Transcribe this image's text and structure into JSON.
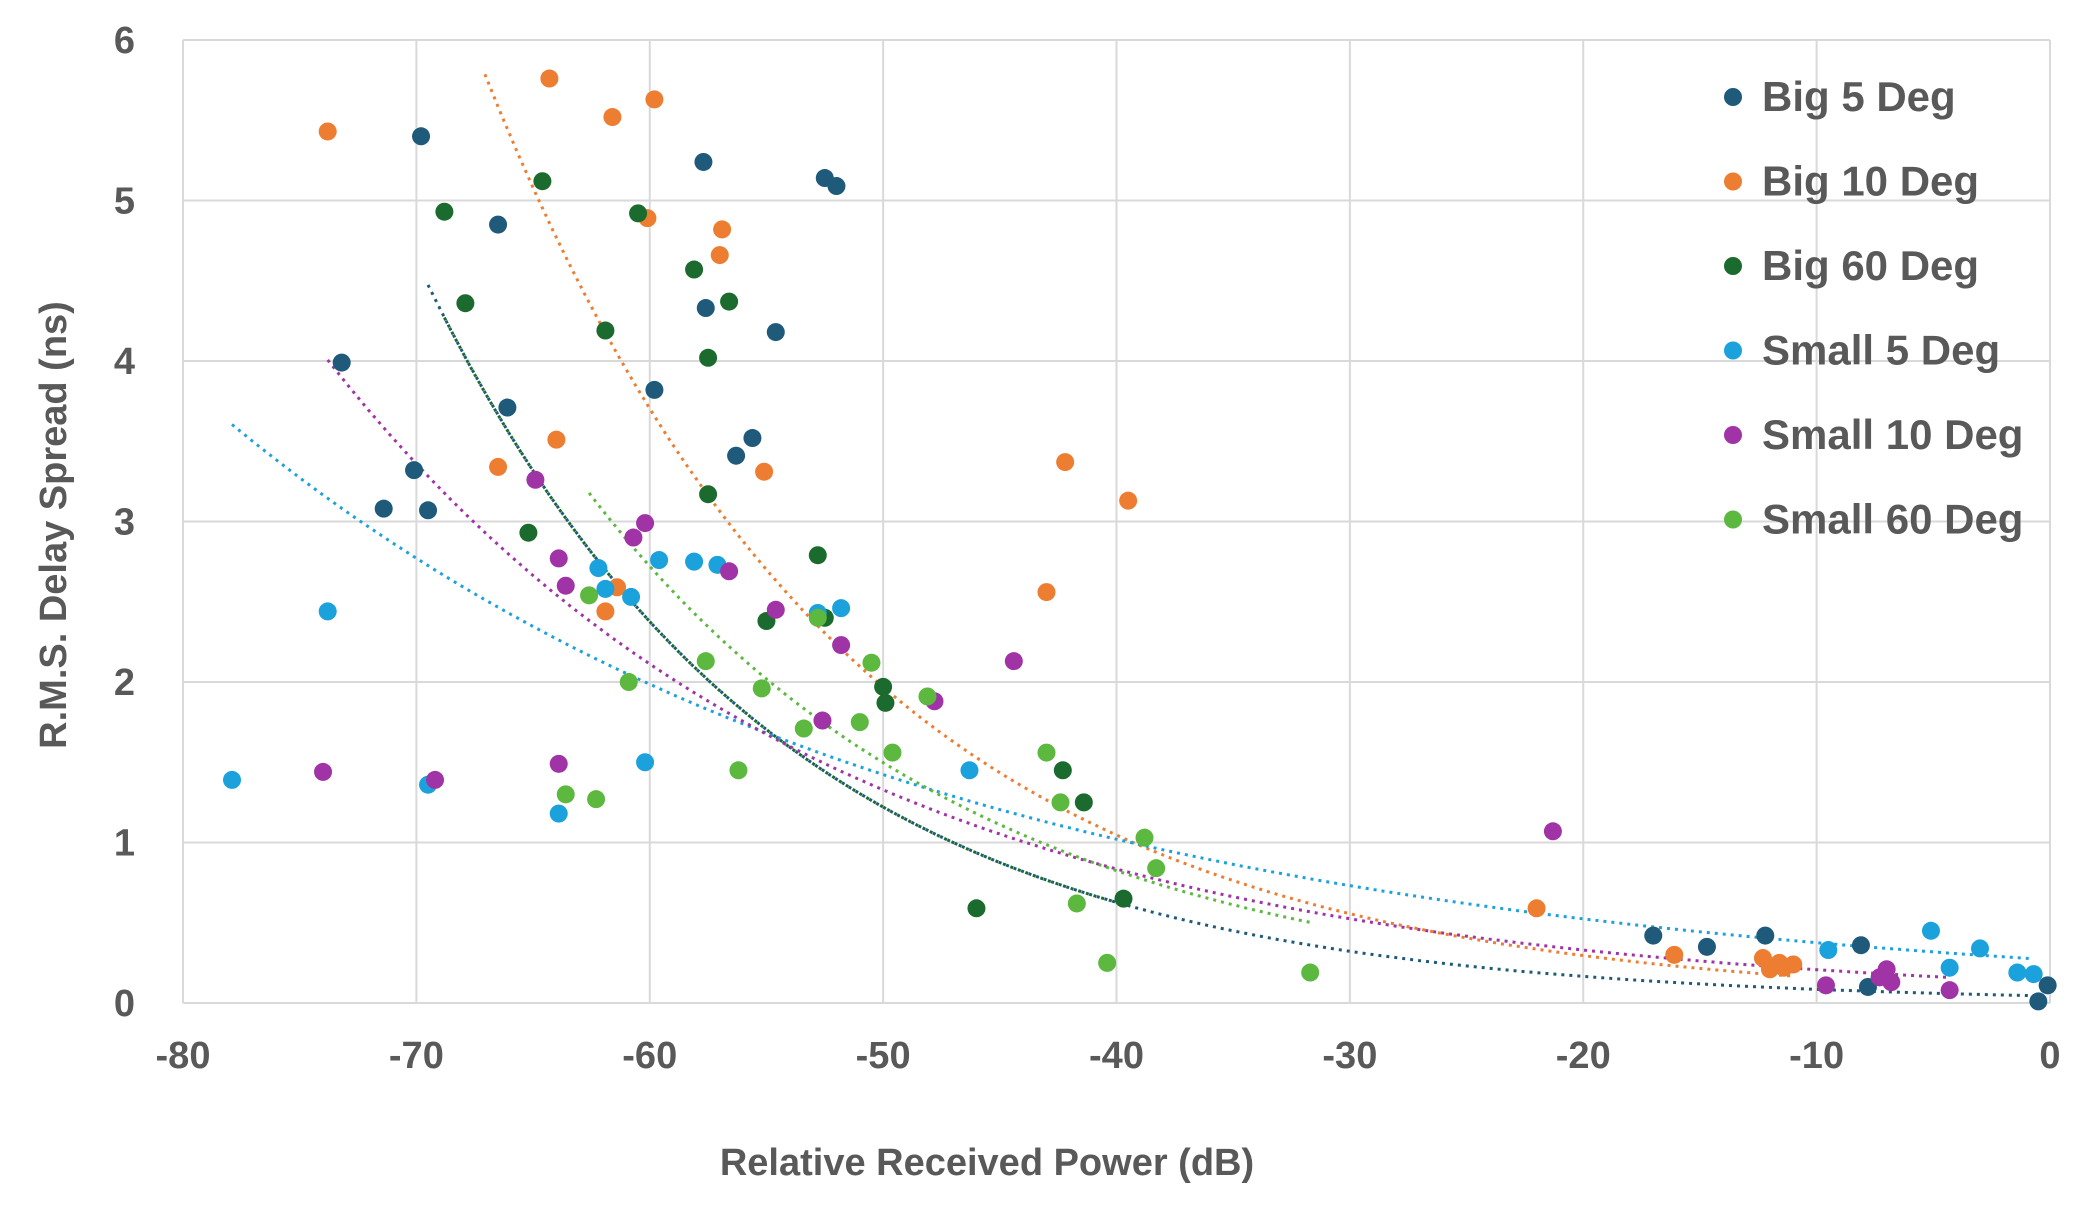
{
  "chart_data": {
    "type": "scatter",
    "title": "",
    "xlabel": "Relative Received Power (dB)",
    "ylabel": "R.M.S. Delay Spread (ns)",
    "xlim": [
      -80,
      0
    ],
    "ylim": [
      0,
      6
    ],
    "xticks": [
      "-80",
      "-70",
      "-60",
      "-50",
      "-40",
      "-30",
      "-20",
      "-10",
      "0"
    ],
    "yticks": [
      "0",
      "1",
      "2",
      "3",
      "4",
      "5",
      "6"
    ],
    "grid": true,
    "legend_position": "top-right",
    "trendlines": "dotted exponential fit per series",
    "series": [
      {
        "name": "Big 5 Deg",
        "color": "#1f5a7a",
        "points": [
          [
            -73.2,
            3.99
          ],
          [
            -70.1,
            3.32
          ],
          [
            -69.8,
            5.4
          ],
          [
            -71.4,
            3.08
          ],
          [
            -69.5,
            3.07
          ],
          [
            -66.5,
            4.85
          ],
          [
            -66.1,
            3.71
          ],
          [
            -59.8,
            3.82
          ],
          [
            -57.7,
            5.24
          ],
          [
            -57.6,
            4.33
          ],
          [
            -56.3,
            3.41
          ],
          [
            -55.6,
            3.52
          ],
          [
            -54.6,
            4.18
          ],
          [
            -52.5,
            5.14
          ],
          [
            -52.0,
            5.09
          ],
          [
            -17.0,
            0.42
          ],
          [
            -14.7,
            0.35
          ],
          [
            -12.2,
            0.42
          ],
          [
            -8.1,
            0.36
          ],
          [
            -7.8,
            0.1
          ],
          [
            -0.5,
            0.01
          ],
          [
            -0.1,
            0.11
          ]
        ],
        "trend": {
          "a": 0.0437,
          "b": -0.0666,
          "x_range": [
            -69.5,
            -0.1
          ]
        }
      },
      {
        "name": "Big 10 Deg",
        "color": "#ed7d31",
        "points": [
          [
            -73.8,
            5.43
          ],
          [
            -64.3,
            5.76
          ],
          [
            -61.6,
            5.52
          ],
          [
            -59.8,
            5.63
          ],
          [
            -60.1,
            4.89
          ],
          [
            -56.9,
            4.82
          ],
          [
            -57.0,
            4.66
          ],
          [
            -66.5,
            3.34
          ],
          [
            -64.0,
            3.51
          ],
          [
            -55.1,
            3.31
          ],
          [
            -61.4,
            2.59
          ],
          [
            -61.9,
            2.44
          ],
          [
            -42.2,
            3.37
          ],
          [
            -39.5,
            3.13
          ],
          [
            -43.0,
            2.56
          ],
          [
            -22.0,
            0.59
          ],
          [
            -16.1,
            0.3
          ],
          [
            -12.3,
            0.28
          ],
          [
            -11.6,
            0.25
          ],
          [
            -11.0,
            0.24
          ],
          [
            -12.0,
            0.21
          ],
          [
            -11.4,
            0.22
          ]
        ],
        "trend": {
          "a": 0.0835,
          "b": -0.0632,
          "x_range": [
            -68.5,
            -11.0
          ]
        }
      },
      {
        "name": "Big 60 Deg",
        "color": "#1b6b2f",
        "points": [
          [
            -68.8,
            4.93
          ],
          [
            -67.9,
            4.36
          ],
          [
            -64.6,
            5.12
          ],
          [
            -60.5,
            4.92
          ],
          [
            -61.9,
            4.19
          ],
          [
            -58.1,
            4.57
          ],
          [
            -57.5,
            4.02
          ],
          [
            -56.6,
            4.37
          ],
          [
            -57.5,
            3.17
          ],
          [
            -65.2,
            2.93
          ],
          [
            -52.8,
            2.79
          ],
          [
            -55.0,
            2.38
          ],
          [
            -52.5,
            2.4
          ],
          [
            -50.0,
            1.97
          ],
          [
            -49.9,
            1.87
          ],
          [
            -42.3,
            1.45
          ],
          [
            -41.4,
            1.25
          ],
          [
            -46.0,
            0.59
          ],
          [
            -39.7,
            0.65
          ]
        ],
        "trend": {
          "a": 0.0437,
          "b": -0.0666,
          "x_range": [
            -68.8,
            -39.7
          ]
        }
      },
      {
        "name": "Small 5 Deg",
        "color": "#1ba1dc",
        "points": [
          [
            -77.9,
            1.39
          ],
          [
            -73.8,
            2.44
          ],
          [
            -69.5,
            1.36
          ],
          [
            -63.9,
            1.18
          ],
          [
            -62.2,
            2.71
          ],
          [
            -61.9,
            2.58
          ],
          [
            -60.8,
            2.53
          ],
          [
            -60.2,
            1.5
          ],
          [
            -59.6,
            2.76
          ],
          [
            -58.1,
            2.75
          ],
          [
            -57.1,
            2.73
          ],
          [
            -52.8,
            2.43
          ],
          [
            -51.8,
            2.46
          ],
          [
            -46.3,
            1.45
          ],
          [
            -9.5,
            0.33
          ],
          [
            -5.1,
            0.45
          ],
          [
            -4.3,
            0.22
          ],
          [
            -3.0,
            0.34
          ],
          [
            -1.4,
            0.19
          ],
          [
            -0.7,
            0.18
          ]
        ],
        "trend": {
          "a": 0.2693,
          "b": -0.0333,
          "x_range": [
            -77.9,
            -0.7
          ]
        }
      },
      {
        "name": "Small 10 Deg",
        "color": "#a033a6",
        "points": [
          [
            -74.0,
            1.44
          ],
          [
            -69.2,
            1.39
          ],
          [
            -64.9,
            3.26
          ],
          [
            -63.9,
            2.77
          ],
          [
            -63.6,
            2.6
          ],
          [
            -63.9,
            1.49
          ],
          [
            -60.7,
            2.9
          ],
          [
            -60.2,
            2.99
          ],
          [
            -56.6,
            2.69
          ],
          [
            -54.6,
            2.45
          ],
          [
            -52.6,
            1.76
          ],
          [
            -51.8,
            2.23
          ],
          [
            -47.8,
            1.88
          ],
          [
            -44.4,
            2.13
          ],
          [
            -21.3,
            1.07
          ],
          [
            -9.6,
            0.11
          ],
          [
            -7.3,
            0.16
          ],
          [
            -7.0,
            0.21
          ],
          [
            -6.8,
            0.13
          ],
          [
            -4.3,
            0.08
          ]
        ],
        "trend": {
          "a": 0.1305,
          "b": -0.0464,
          "x_range": [
            -73.8,
            -4.3
          ]
        }
      },
      {
        "name": "Small 60 Deg",
        "color": "#5cb83e",
        "points": [
          [
            -63.6,
            1.3
          ],
          [
            -62.3,
            1.27
          ],
          [
            -62.6,
            2.54
          ],
          [
            -60.9,
            2.0
          ],
          [
            -57.6,
            2.13
          ],
          [
            -56.2,
            1.45
          ],
          [
            -55.2,
            1.96
          ],
          [
            -53.4,
            1.71
          ],
          [
            -52.8,
            2.4
          ],
          [
            -51.0,
            1.75
          ],
          [
            -50.5,
            2.12
          ],
          [
            -49.6,
            1.56
          ],
          [
            -48.1,
            1.91
          ],
          [
            -43.0,
            1.56
          ],
          [
            -42.4,
            1.25
          ],
          [
            -41.7,
            0.62
          ],
          [
            -40.4,
            0.25
          ],
          [
            -38.8,
            1.03
          ],
          [
            -38.3,
            0.84
          ],
          [
            -31.7,
            0.19
          ]
        ],
        "trend": {
          "a": 0.0757,
          "b": -0.0597,
          "x_range": [
            -62.6,
            -31.7
          ]
        }
      }
    ]
  }
}
